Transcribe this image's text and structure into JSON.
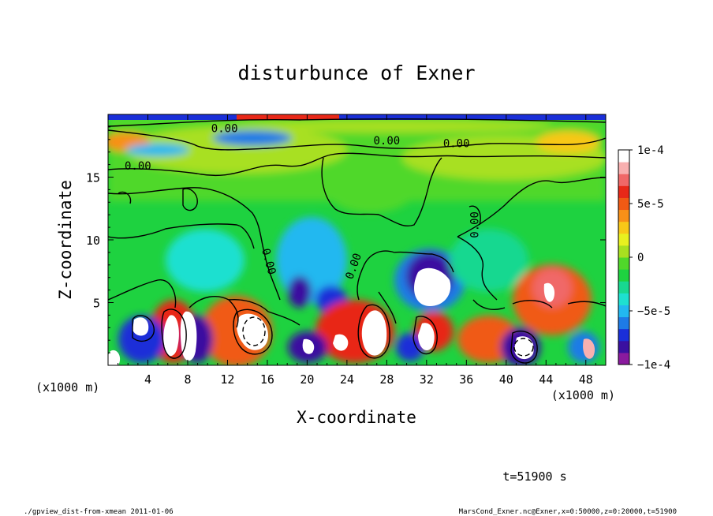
{
  "chart_data": {
    "type": "heatmap",
    "title": "disturbunce of Exner",
    "xlabel": "X-coordinate",
    "ylabel": "Z-coordinate",
    "x_unit": "(x1000 m)",
    "y_unit": "(x1000 m)",
    "xlim": [
      0,
      50
    ],
    "ylim": [
      0,
      20
    ],
    "x_ticks": [
      4,
      8,
      12,
      16,
      20,
      24,
      28,
      32,
      36,
      40,
      44,
      48
    ],
    "y_ticks": [
      5,
      10,
      15
    ],
    "colorbar": {
      "min": -0.0001,
      "max": 0.0001,
      "ticks": [
        {
          "value": 0.0001,
          "label": "1e-4"
        },
        {
          "value": 5e-05,
          "label": "5e-5"
        },
        {
          "value": 0,
          "label": "0"
        },
        {
          "value": -5e-05,
          "label": "−5e-5"
        },
        {
          "value": -0.0001,
          "label": "−1e-4"
        }
      ],
      "colors": [
        "#8a1a9e",
        "#3a10a0",
        "#1a2fd8",
        "#1e7be6",
        "#22b8f0",
        "#1ee0d0",
        "#18d890",
        "#1ed240",
        "#50d82a",
        "#a8e020",
        "#e8f020",
        "#f8c818",
        "#f89018",
        "#f05a14",
        "#e82818",
        "#f06868",
        "#f8b0b0",
        "#ffffff"
      ]
    },
    "contour_labels": [
      {
        "text": "0.00",
        "x": 11.7,
        "z": 18.6,
        "angle": 0
      },
      {
        "text": "0.00",
        "x": 28.0,
        "z": 17.6,
        "angle": 0
      },
      {
        "text": "0.00",
        "x": 35.0,
        "z": 17.4,
        "angle": 0
      },
      {
        "text": "0.00",
        "x": 3.0,
        "z": 15.6,
        "angle": 0
      },
      {
        "text": "0.00",
        "x": 15.8,
        "z": 8.2,
        "angle": 75
      },
      {
        "text": "0.00",
        "x": 25.0,
        "z": 7.8,
        "angle": -70
      },
      {
        "text": "0.00",
        "x": 37.2,
        "z": 11.2,
        "angle": -90
      }
    ],
    "grid": false,
    "legend": "right"
  },
  "footer": {
    "time_label": "t=51900 s",
    "left": "./gpview_dist-from-xmean  2011-01-06",
    "right": "MarsCond_Exner.nc@Exner,x=0:50000,z=0:20000,t=51900"
  }
}
